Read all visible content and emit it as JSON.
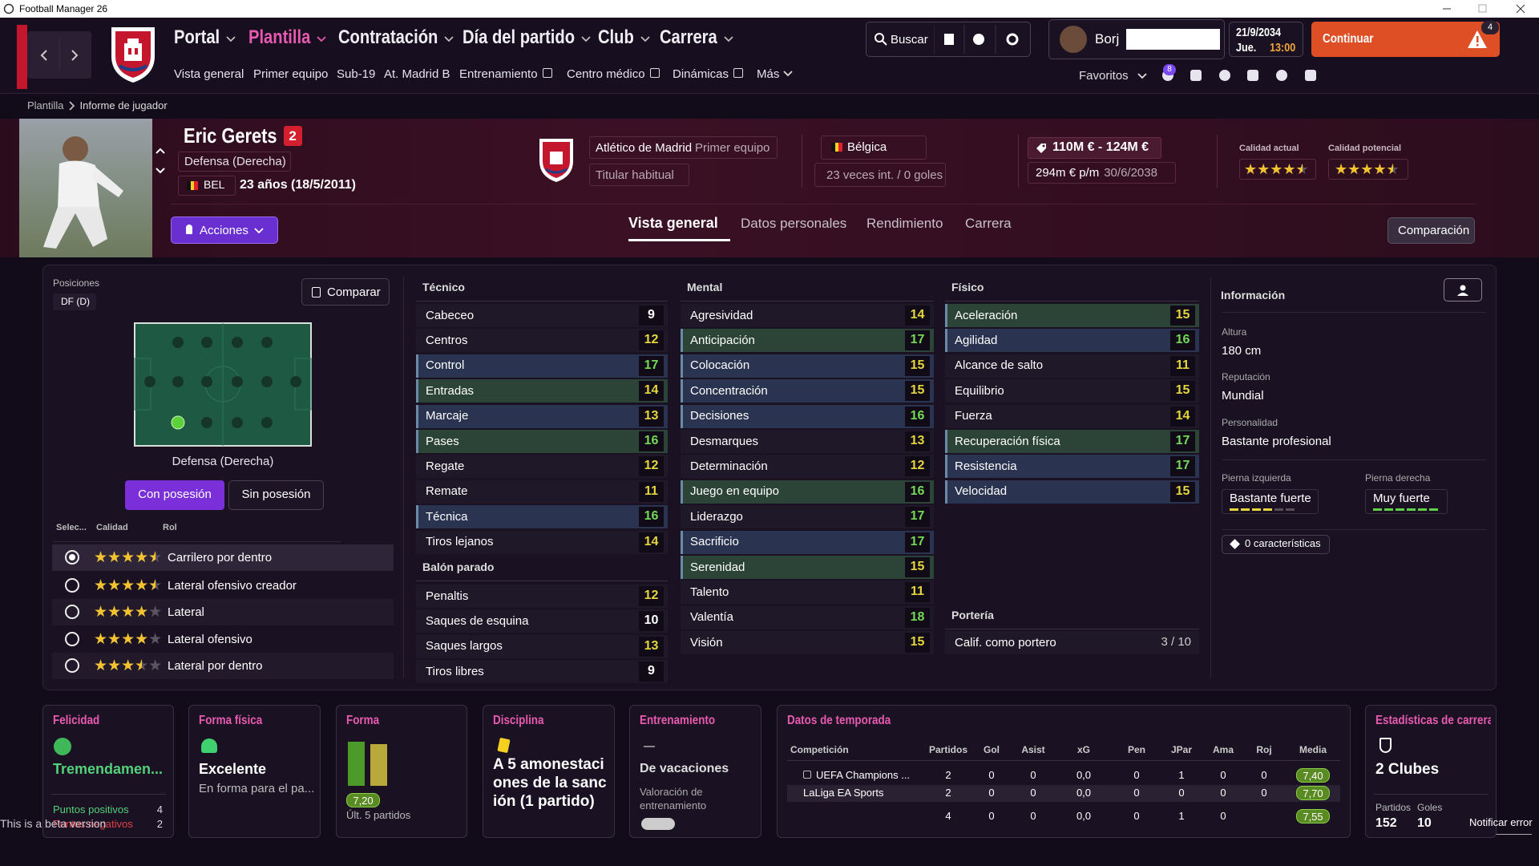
{
  "window_title": "Football Manager 26",
  "nav": {
    "menus": [
      "Portal",
      "Plantilla",
      "Contratación",
      "Día del partido",
      "Club",
      "Carrera"
    ],
    "submenu": [
      "Vista general",
      "Primer equipo",
      "Sub-19",
      "At. Madrid B",
      "Entrenamiento",
      "Centro médico",
      "Dinámicas",
      "Más"
    ],
    "search": "Buscar",
    "manager": "Borj",
    "date": "21/9/2034",
    "weekday": "Jue.",
    "time": "13:00",
    "continue": "Continuar",
    "continue_badge": 4,
    "favorites": "Favoritos",
    "inbox_badge": 8
  },
  "breadcrumb": [
    "Plantilla",
    "Informe de jugador"
  ],
  "player": {
    "name": "Eric Gerets",
    "number": 2,
    "position": "Defensa (Derecha)",
    "nation_code": "BEL",
    "age": "23 años (18/5/2011)",
    "club": "Atlético de Madrid",
    "squad": "Primer equipo",
    "status": "Titular habitual",
    "nationality": "Bélgica",
    "caps": "23 veces int. / 0 goles",
    "value": "110M € - 124M €",
    "wage": "294m € p/m",
    "contract_end": "30/6/2038",
    "current_ability": {
      "label": "Calidad actual",
      "stars": 4.5
    },
    "potential_ability": {
      "label": "Calidad potencial",
      "stars": 4.5
    },
    "actions": "Acciones"
  },
  "tabs": [
    "Vista general",
    "Datos personales",
    "Rendimiento",
    "Carrera"
  ],
  "comparison": "Comparación",
  "positions": {
    "title": "Posiciones",
    "code": "DF (D)",
    "compare": "Comparar",
    "position": "Defensa (Derecha)",
    "toggle": [
      "Con posesión",
      "Sin posesión"
    ],
    "headers": [
      "Selec...",
      "Calidad",
      "Rol"
    ],
    "roles": [
      {
        "name": "Carrilero por dentro",
        "stars": 4.5
      },
      {
        "name": "Lateral ofensivo creador",
        "stars": 4.5
      },
      {
        "name": "Lateral",
        "stars": 4
      },
      {
        "name": "Lateral ofensivo",
        "stars": 4
      },
      {
        "name": "Lateral por dentro",
        "stars": 3.5
      }
    ]
  },
  "attributes": {
    "technical": {
      "title": "Técnico",
      "rows": [
        {
          "name": "Cabeceo",
          "value": 9
        },
        {
          "name": "Centros",
          "value": 12
        },
        {
          "name": "Control",
          "value": 17,
          "bg": "#2a3450"
        },
        {
          "name": "Entradas",
          "value": 14,
          "bg": "#2b4437"
        },
        {
          "name": "Marcaje",
          "value": 13,
          "bg": "#2a3450"
        },
        {
          "name": "Pases",
          "value": 16,
          "bg": "#2b4437"
        },
        {
          "name": "Regate",
          "value": 12
        },
        {
          "name": "Remate",
          "value": 11
        },
        {
          "name": "Técnica",
          "value": 16,
          "bg": "#2a3450"
        },
        {
          "name": "Tiros lejanos",
          "value": 14
        }
      ]
    },
    "set_pieces": {
      "title": "Balón parado",
      "rows": [
        {
          "name": "Penaltis",
          "value": 12
        },
        {
          "name": "Saques de esquina",
          "value": 10
        },
        {
          "name": "Saques largos",
          "value": 13
        },
        {
          "name": "Tiros libres",
          "value": 9
        }
      ]
    },
    "mental": {
      "title": "Mental",
      "rows": [
        {
          "name": "Agresividad",
          "value": 14
        },
        {
          "name": "Anticipación",
          "value": 17,
          "bg": "#2b4437"
        },
        {
          "name": "Colocación",
          "value": 15,
          "bg": "#2a3450"
        },
        {
          "name": "Concentración",
          "value": 15,
          "bg": "#2a3450"
        },
        {
          "name": "Decisiones",
          "value": 16,
          "bg": "#2a3450"
        },
        {
          "name": "Desmarques",
          "value": 13
        },
        {
          "name": "Determinación",
          "value": 12
        },
        {
          "name": "Juego en equipo",
          "value": 16,
          "bg": "#2b4437"
        },
        {
          "name": "Liderazgo",
          "value": 17
        },
        {
          "name": "Sacrificio",
          "value": 17,
          "bg": "#2a3450"
        },
        {
          "name": "Serenidad",
          "value": 15,
          "bg": "#2b4437"
        },
        {
          "name": "Talento",
          "value": 11
        },
        {
          "name": "Valentía",
          "value": 18
        },
        {
          "name": "Visión",
          "value": 15
        }
      ]
    },
    "physical": {
      "title": "Físico",
      "rows": [
        {
          "name": "Aceleración",
          "value": 15,
          "bg": "#2b4437"
        },
        {
          "name": "Agilidad",
          "value": 16,
          "bg": "#2a3450"
        },
        {
          "name": "Alcance de salto",
          "value": 11
        },
        {
          "name": "Equilibrio",
          "value": 15
        },
        {
          "name": "Fuerza",
          "value": 14
        },
        {
          "name": "Recuperación física",
          "value": 17,
          "bg": "#2b4437"
        },
        {
          "name": "Resistencia",
          "value": 17,
          "bg": "#2a3450"
        },
        {
          "name": "Velocidad",
          "value": 15,
          "bg": "#2a3450"
        }
      ]
    },
    "goalkeeping": {
      "title": "Portería",
      "rows": [
        {
          "name": "Calif. como portero",
          "value": "3 / 10"
        }
      ]
    }
  },
  "info": {
    "title": "Información",
    "height": {
      "label": "Altura",
      "value": "180 cm"
    },
    "reputation": {
      "label": "Reputación",
      "value": "Mundial"
    },
    "personality": {
      "label": "Personalidad",
      "value": "Bastante profesional"
    },
    "left_foot": {
      "label": "Pierna izquierda",
      "value": "Bastante fuerte"
    },
    "right_foot": {
      "label": "Pierna derecha",
      "value": "Muy fuerte"
    },
    "traits": "0 características"
  },
  "cards": {
    "happiness": {
      "title": "Felicidad",
      "value": "Tremendamen...",
      "positive_label": "Puntos positivos",
      "positive": 4,
      "negative_label": "Puntos negativos",
      "negative": 2
    },
    "fitness": {
      "title": "Forma física",
      "value": "Excelente",
      "detail": "En forma para el pa..."
    },
    "form": {
      "title": "Forma",
      "rating": "7,20",
      "detail": "Últ. 5 partidos"
    },
    "discipline": {
      "title": "Disciplina",
      "value": "A 5 amonestaciones de la sanción (1 partido)"
    },
    "training": {
      "title": "Entrenamiento",
      "value": "De vacaciones",
      "detail": "Valoración de entrenamiento"
    },
    "season": {
      "title": "Datos de temporada",
      "headers": [
        "Competición",
        "Partidos",
        "Gol",
        "Asist",
        "xG",
        "Pen",
        "JPar",
        "Ama",
        "Roj",
        "Media"
      ],
      "rows": [
        [
          "UEFA Champions ...",
          2,
          0,
          0,
          "0,0",
          0,
          1,
          0,
          0,
          "7,40"
        ],
        [
          "LaLiga EA Sports",
          2,
          0,
          0,
          "0,0",
          0,
          0,
          0,
          0,
          "7,70"
        ],
        [
          null,
          4,
          0,
          0,
          "0,0",
          0,
          1,
          0,
          null,
          "7,55"
        ]
      ]
    },
    "career": {
      "title": "Estadísticas de carrera",
      "clubs": "2 Clubes",
      "apps_label": "Partidos",
      "apps": 152,
      "goals_label": "Goles",
      "goals": 10
    }
  },
  "footer": {
    "beta": "This is a beta version",
    "report": "Notificar error"
  }
}
